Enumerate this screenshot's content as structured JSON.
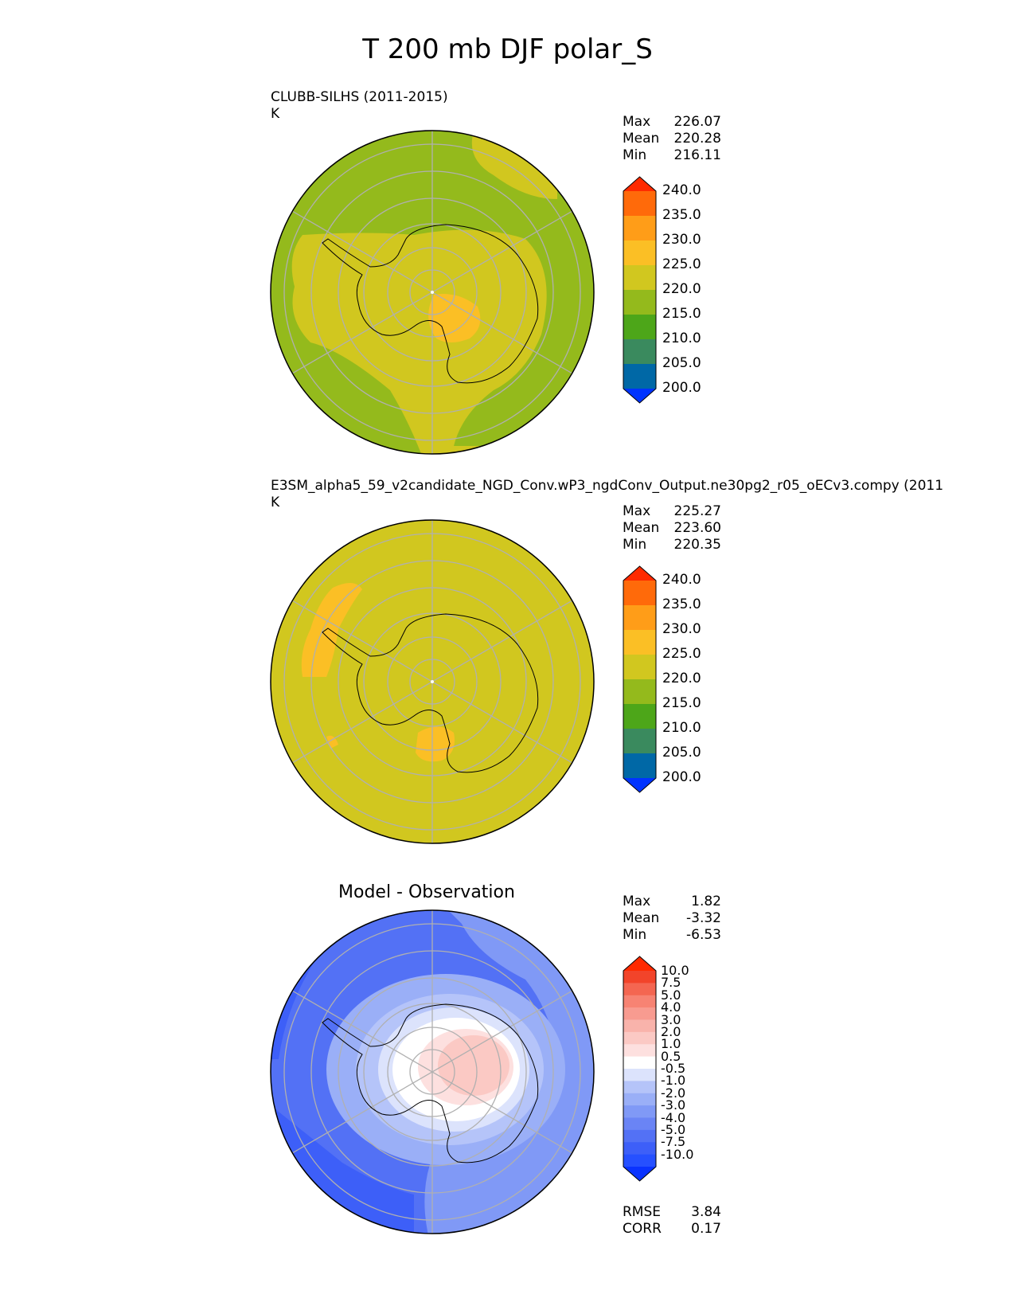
{
  "title": "T 200 mb DJF polar_S",
  "panels": [
    {
      "id": "test",
      "title": "CLUBB-SILHS (2011-2015)",
      "units": "K",
      "stats": [
        {
          "label": "Max",
          "value": "226.07"
        },
        {
          "label": "Mean",
          "value": "220.28"
        },
        {
          "label": "Min",
          "value": "216.11"
        }
      ],
      "colorbar_ticks": [
        "240.0",
        "235.0",
        "230.0",
        "225.0",
        "220.0",
        "215.0",
        "210.0",
        "205.0",
        "200.0"
      ]
    },
    {
      "id": "reference",
      "title": "E3SM_alpha5_59_v2candidate_NGD_Conv.wP3_ngdConv_Output.ne30pg2_r05_oECv3.compy (2011",
      "units": "K",
      "stats": [
        {
          "label": "Max",
          "value": "225.27"
        },
        {
          "label": "Mean",
          "value": "223.60"
        },
        {
          "label": "Min",
          "value": "220.35"
        }
      ],
      "colorbar_ticks": [
        "240.0",
        "235.0",
        "230.0",
        "225.0",
        "220.0",
        "215.0",
        "210.0",
        "205.0",
        "200.0"
      ]
    },
    {
      "id": "difference",
      "title": "Model - Observation",
      "stats": [
        {
          "label": "Max",
          "value": "1.82"
        },
        {
          "label": "Mean",
          "value": "-3.32"
        },
        {
          "label": "Min",
          "value": "-6.53"
        }
      ],
      "colorbar_ticks": [
        "10.0",
        "7.5",
        "5.0",
        "4.0",
        "3.0",
        "2.0",
        "1.0",
        "0.5",
        "-0.5",
        "-1.0",
        "-2.0",
        "-3.0",
        "-4.0",
        "-5.0",
        "-7.5",
        "-10.0"
      ],
      "metrics": [
        {
          "label": "RMSE",
          "value": "3.84"
        },
        {
          "label": "CORR",
          "value": "0.17"
        }
      ]
    }
  ],
  "chart_data": [
    {
      "type": "heatmap",
      "title": "CLUBB-SILHS (2011-2015)",
      "projection": "south-polar-stereographic",
      "variable": "T 200 mb DJF",
      "units": "K",
      "levels": [
        200,
        205,
        210,
        215,
        220,
        225,
        230,
        235,
        240
      ],
      "colors": [
        "#0033ff",
        "#0068a6",
        "#3a8a5e",
        "#4da619",
        "#94ba1c",
        "#d1c71f",
        "#fbbf25",
        "#ff9d18",
        "#ff6a0a",
        "#ff2a00"
      ],
      "stats": {
        "max": 226.07,
        "mean": 220.28,
        "min": 216.11
      }
    },
    {
      "type": "heatmap",
      "title": "E3SM_alpha5_59_v2candidate_NGD_Conv.wP3_ngdConv_Output.ne30pg2_r05_oECv3.compy (2011",
      "projection": "south-polar-stereographic",
      "variable": "T 200 mb DJF",
      "units": "K",
      "levels": [
        200,
        205,
        210,
        215,
        220,
        225,
        230,
        235,
        240
      ],
      "colors": [
        "#0033ff",
        "#0068a6",
        "#3a8a5e",
        "#4da619",
        "#94ba1c",
        "#d1c71f",
        "#fbbf25",
        "#ff9d18",
        "#ff6a0a",
        "#ff2a00"
      ],
      "stats": {
        "max": 225.27,
        "mean": 223.6,
        "min": 220.35
      }
    },
    {
      "type": "heatmap",
      "title": "Model - Observation",
      "projection": "south-polar-stereographic",
      "levels": [
        -10.0,
        -7.5,
        -5.0,
        -4.0,
        -3.0,
        -2.0,
        -1.0,
        -0.5,
        0.5,
        1.0,
        2.0,
        3.0,
        4.0,
        5.0,
        7.5,
        10.0
      ],
      "colors": [
        "#0a33ff",
        "#2650ff",
        "#3d5ff8",
        "#5371f5",
        "#6a84f5",
        "#8099f6",
        "#9aaff7",
        "#b5c4f9",
        "#dce3fc",
        "#ffffff",
        "#fde0df",
        "#fbc9c4",
        "#f9b3ab",
        "#f89b90",
        "#f78373",
        "#f46651",
        "#f2442a",
        "#ff2a00"
      ],
      "stats": {
        "max": 1.82,
        "mean": -3.32,
        "min": -6.53,
        "rmse": 3.84,
        "corr": 0.17
      }
    }
  ],
  "colors": {
    "abs_scale": [
      "#ff2a00",
      "#ff6a0a",
      "#ff9d18",
      "#fbbf25",
      "#d1c71f",
      "#94ba1c",
      "#4da619",
      "#3a8a5e",
      "#0068a6",
      "#0033ff"
    ],
    "diff_scale": [
      "#ff2a00",
      "#f2442a",
      "#f46651",
      "#f78373",
      "#f89b90",
      "#f9b3ab",
      "#fbc9c4",
      "#fde0df",
      "#ffffff",
      "#dce3fc",
      "#b5c4f9",
      "#9aaff7",
      "#8099f6",
      "#6a84f5",
      "#5371f5",
      "#3d5ff8",
      "#2650ff",
      "#0a33ff"
    ],
    "grid": "#b0b0b0",
    "coast": "#000000"
  }
}
